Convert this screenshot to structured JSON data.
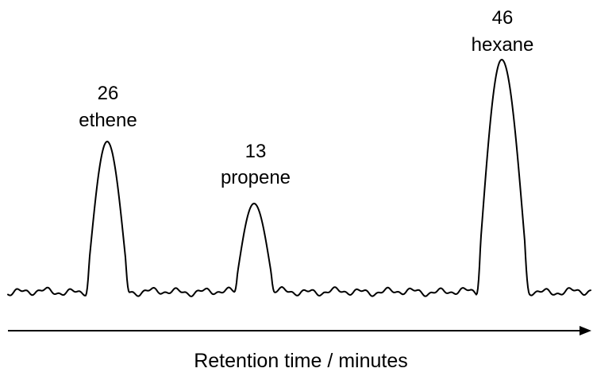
{
  "chart_data": {
    "type": "line",
    "title": "",
    "xlabel": "Retention time / minutes",
    "ylabel": "",
    "peaks": [
      {
        "area": "26",
        "name": "ethene"
      },
      {
        "area": "13",
        "name": "propene"
      },
      {
        "area": "46",
        "name": "hexane"
      }
    ],
    "grid": false,
    "legend": "none"
  },
  "colors": {
    "trace": "#000000",
    "axis": "#000000",
    "background": "#ffffff"
  }
}
